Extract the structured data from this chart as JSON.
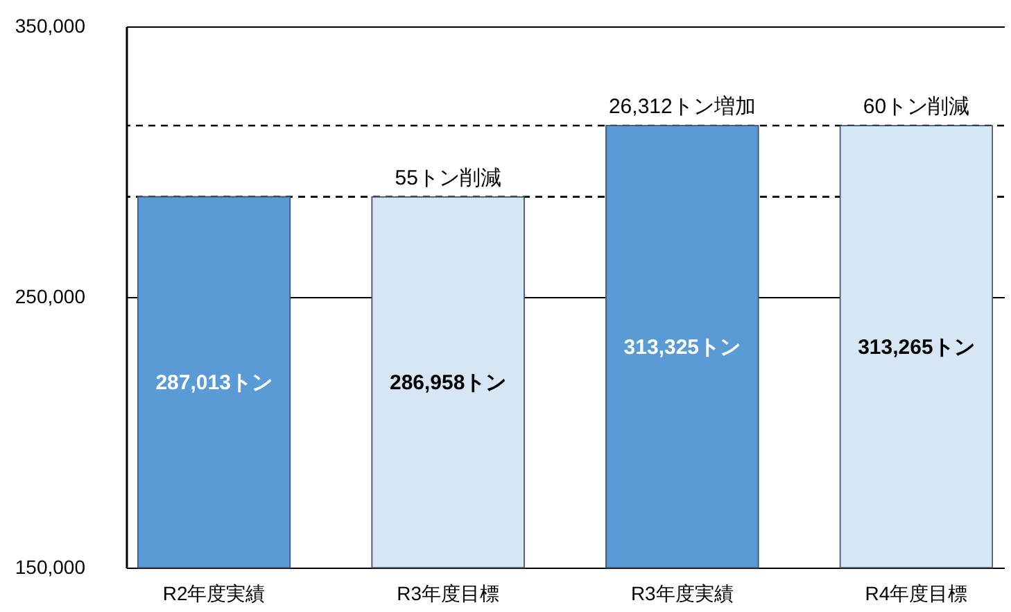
{
  "chart_data": {
    "type": "bar",
    "categories": [
      "R2年度実績",
      "R3年度目標",
      "R3年度実績",
      "R4年度目標"
    ],
    "series": [
      {
        "color": "#5b9bd5",
        "values": [
          287013,
          null,
          313325,
          null
        ],
        "value_labels": [
          "287,013トン",
          null,
          "313,325トン",
          null
        ]
      },
      {
        "color": "#d6e6f5",
        "values": [
          null,
          286958,
          null,
          313265
        ],
        "value_labels": [
          null,
          "286,958トン",
          null,
          "313,265トン"
        ]
      }
    ],
    "ylim": [
      150000,
      350000
    ],
    "yticks": [
      {
        "value": 150000,
        "label": "150,000"
      },
      {
        "value": 250000,
        "label": "250,000"
      },
      {
        "value": 350000,
        "label": "350,000"
      }
    ],
    "grid": "y",
    "ref_lines": [
      {
        "axis": "y",
        "value": 287013,
        "line_style": "dashed"
      },
      {
        "axis": "y",
        "value": 313325,
        "line_style": "dashed"
      }
    ],
    "annotations": [
      {
        "text": "55トン削減",
        "x": "R3年度目標",
        "y": 287013
      },
      {
        "text": "26,312トン増加",
        "x": "R3年度実績",
        "y": 313325
      },
      {
        "text": "60トン削減",
        "x": "R4年度目標",
        "y": 313325
      }
    ]
  }
}
